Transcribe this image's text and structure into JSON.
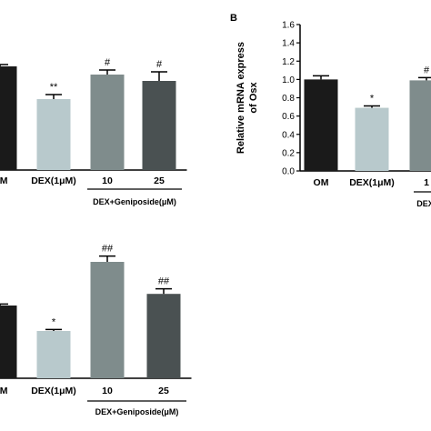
{
  "panel_b_label": "B",
  "chart_data": [
    {
      "type": "bar",
      "panel": "A (top-left, cropped)",
      "categories": [
        "OM",
        "DEX(1μM)",
        "10",
        "25"
      ],
      "values": [
        1.14,
        0.78,
        1.05,
        0.98
      ],
      "errors": [
        0.02,
        0.05,
        0.05,
        0.1
      ],
      "significance": [
        "",
        "**",
        "#",
        "#"
      ],
      "colors": [
        "#1a1a1a",
        "#b8c9cc",
        "#7f8c8c",
        "#4a5152"
      ],
      "group_label": "DEX+Geniposide(μM)",
      "ylim": [
        0,
        1.6
      ]
    },
    {
      "type": "bar",
      "panel": "B",
      "categories": [
        "OM",
        "DEX(1μM)",
        "1"
      ],
      "values": [
        1.0,
        0.69,
        0.99
      ],
      "errors": [
        0.04,
        0.02,
        0.03
      ],
      "significance": [
        "",
        "*",
        "#"
      ],
      "colors": [
        "#1a1a1a",
        "#b8c9cc",
        "#7f8c8c"
      ],
      "group_label": "DEX",
      "ylabel_lines": [
        "Relative mRNA express",
        "of Osx"
      ],
      "yticks": [
        "0.0",
        "0.2",
        "0.4",
        "0.6",
        "0.8",
        "1.0",
        "1.2",
        "1.4",
        "1.6"
      ],
      "ylim": [
        0,
        1.6
      ]
    },
    {
      "type": "bar",
      "panel": "C (bottom-left, cropped)",
      "categories": [
        "OM",
        "DEX(1μM)",
        "10",
        "25"
      ],
      "values": [
        1.0,
        0.65,
        1.6,
        1.16
      ],
      "errors": [
        0.02,
        0.02,
        0.08,
        0.07
      ],
      "significance": [
        "",
        "*",
        "##",
        "##"
      ],
      "colors": [
        "#1a1a1a",
        "#b8c9cc",
        "#7f8c8c",
        "#4a5152"
      ],
      "group_label": "DEX+Geniposide(μM)",
      "ylim": [
        0,
        2.0
      ]
    }
  ]
}
